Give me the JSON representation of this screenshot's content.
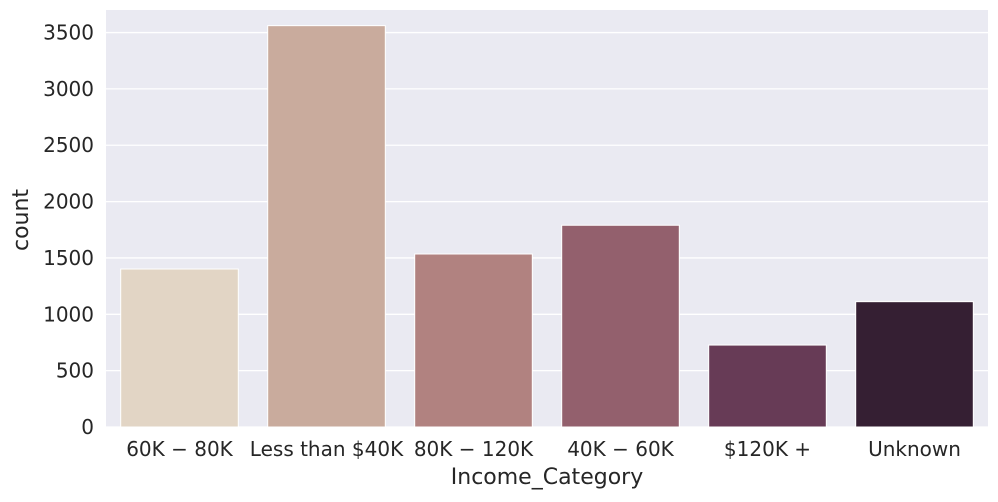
{
  "chart_data": {
    "type": "bar",
    "title": "",
    "xlabel": "Income_Category",
    "ylabel": "count",
    "categories": [
      "$60K - $80K",
      "Less than $40K",
      "$80K - $120K",
      "$40K - $60K",
      "$120K +",
      "Unknown"
    ],
    "tick_labels": [
      "60K − 80K",
      "Less than $40K",
      "80K − 120K",
      "40K − 60K",
      "$120K +",
      "Unknown"
    ],
    "values": [
      1402,
      3561,
      1535,
      1790,
      727,
      1112
    ],
    "ylim": [
      0,
      3700
    ],
    "yticks": [
      0,
      500,
      1000,
      1500,
      2000,
      2500,
      3000,
      3500
    ],
    "colors": [
      "#e2d5c5",
      "#c9ab9d",
      "#b18280",
      "#93606d",
      "#673b56",
      "#351f33"
    ],
    "background": "#eaeaf2",
    "grid": true,
    "legend": "none"
  }
}
